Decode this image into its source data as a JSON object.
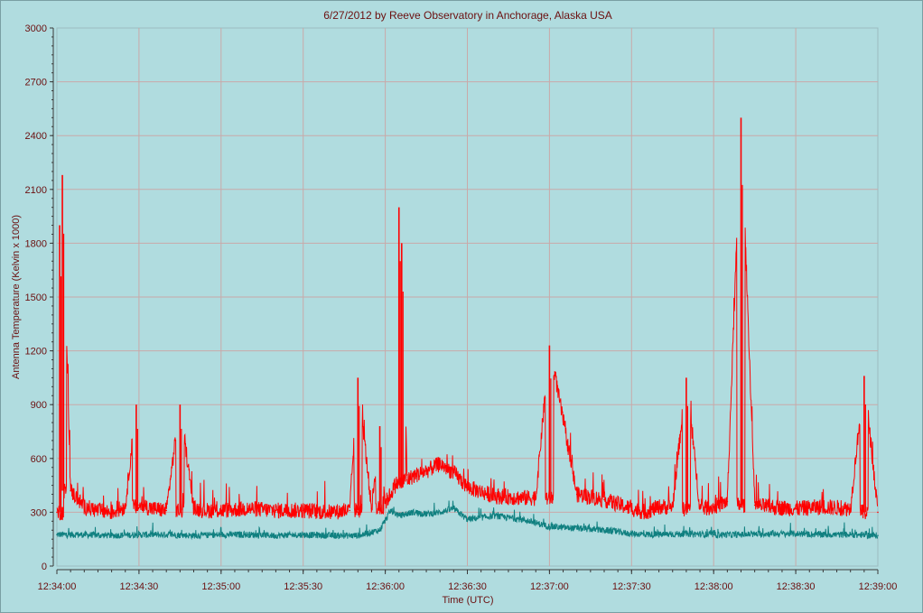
{
  "chart_data": {
    "type": "line",
    "title": "6/27/2012  by  Reeve Observatory  in  Anchorage, Alaska  USA",
    "xlabel": "Time (UTC)",
    "ylabel": "Antenna Temperature (Kelvin x 1000)",
    "ylim": [
      0,
      3000
    ],
    "xlim": [
      "12:34:00",
      "12:39:00"
    ],
    "y_ticks": [
      "0",
      "300",
      "600",
      "900",
      "1200",
      "1500",
      "1800",
      "2100",
      "2400",
      "2700",
      "3000"
    ],
    "x_ticks": [
      "12:34:00",
      "12:34:30",
      "12:35:00",
      "12:35:30",
      "12:36:00",
      "12:36:30",
      "12:37:00",
      "12:37:30",
      "12:38:00",
      "12:38:30",
      "12:39:00"
    ],
    "grid": true,
    "series": [
      {
        "color": "#ff0000",
        "x": [
          "12:34:00",
          "12:34:01",
          "12:34:02",
          "12:34:05",
          "12:34:10",
          "12:34:15",
          "12:34:20",
          "12:34:25",
          "12:34:29",
          "12:34:30",
          "12:34:35",
          "12:34:40",
          "12:34:45",
          "12:34:50",
          "12:34:55",
          "12:35:00",
          "12:35:10",
          "12:35:20",
          "12:35:30",
          "12:35:40",
          "12:35:47",
          "12:35:50",
          "12:35:55",
          "12:35:58",
          "12:36:00",
          "12:36:04",
          "12:36:05",
          "12:36:06",
          "12:36:08",
          "12:36:10",
          "12:36:15",
          "12:36:20",
          "12:36:25",
          "12:36:30",
          "12:36:40",
          "12:36:50",
          "12:36:55",
          "12:37:00",
          "12:37:10",
          "12:37:20",
          "12:37:30",
          "12:37:35",
          "12:37:40",
          "12:37:45",
          "12:37:50",
          "12:37:55",
          "12:38:00",
          "12:38:05",
          "12:38:10",
          "12:38:15",
          "12:38:20",
          "12:38:30",
          "12:38:40",
          "12:38:50",
          "12:38:55",
          "12:39:00"
        ],
        "values": [
          300,
          1900,
          2180,
          420,
          330,
          310,
          300,
          330,
          900,
          340,
          320,
          310,
          900,
          320,
          310,
          310,
          320,
          310,
          310,
          300,
          310,
          1050,
          320,
          780,
          350,
          460,
          2000,
          1800,
          480,
          500,
          530,
          570,
          520,
          440,
          390,
          380,
          380,
          1230,
          400,
          370,
          320,
          300,
          330,
          330,
          1050,
          320,
          330,
          360,
          2500,
          340,
          330,
          320,
          330,
          320,
          1060,
          300
        ]
      },
      {
        "color": "#108080",
        "x": [
          "12:34:00",
          "12:34:10",
          "12:34:20",
          "12:34:30",
          "12:34:40",
          "12:34:50",
          "12:35:00",
          "12:35:10",
          "12:35:20",
          "12:35:30",
          "12:35:40",
          "12:35:50",
          "12:35:58",
          "12:36:02",
          "12:36:05",
          "12:36:10",
          "12:36:15",
          "12:36:20",
          "12:36:25",
          "12:36:30",
          "12:36:40",
          "12:36:50",
          "12:37:00",
          "12:37:10",
          "12:37:20",
          "12:37:30",
          "12:37:40",
          "12:37:50",
          "12:38:00",
          "12:38:10",
          "12:38:20",
          "12:38:30",
          "12:38:40",
          "12:38:50",
          "12:39:00"
        ],
        "values": [
          175,
          175,
          170,
          175,
          175,
          170,
          175,
          175,
          170,
          175,
          170,
          170,
          200,
          310,
          280,
          300,
          290,
          300,
          320,
          260,
          280,
          260,
          220,
          210,
          200,
          180,
          175,
          180,
          175,
          175,
          180,
          180,
          175,
          175,
          170
        ]
      }
    ]
  }
}
